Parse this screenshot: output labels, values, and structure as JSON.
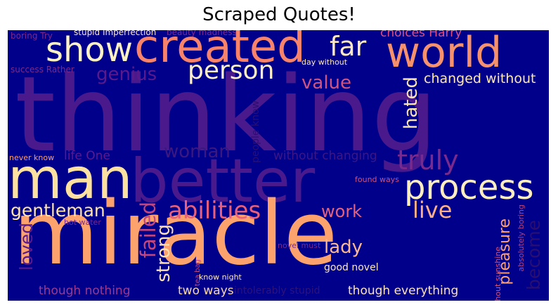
{
  "title": "Scraped Quotes!",
  "colors": {
    "background": "#00008b",
    "page": "#ffffff"
  },
  "words": [
    {
      "text": "thinking",
      "color": "#4a1a8c"
    },
    {
      "text": "miracle",
      "color": "#fca26c"
    },
    {
      "text": "better",
      "color": "#4a1a8c"
    },
    {
      "text": "man",
      "color": "#fde1a0"
    },
    {
      "text": "created",
      "color": "#f7836b"
    },
    {
      "text": "world",
      "color": "#f5916c"
    },
    {
      "text": "show",
      "color": "#fdf2c4"
    },
    {
      "text": "process",
      "color": "#fdeec0"
    },
    {
      "text": "person",
      "color": "#fdf0c8"
    },
    {
      "text": "far",
      "color": "#fce9c0"
    },
    {
      "text": "truly",
      "color": "#7a2a8c"
    },
    {
      "text": "abilities",
      "color": "#e8607a"
    },
    {
      "text": "live",
      "color": "#fdb088"
    },
    {
      "text": "gentleman",
      "color": "#fde3ac"
    },
    {
      "text": "value",
      "color": "#d0557f"
    },
    {
      "text": "genius",
      "color": "#5a1a8c"
    },
    {
      "text": "hated",
      "color": "#fbe6b0"
    },
    {
      "text": "changed without",
      "color": "#fde6b8"
    },
    {
      "text": "woman",
      "color": "#3a1880"
    },
    {
      "text": "work",
      "color": "#e6637c"
    },
    {
      "text": "lady",
      "color": "#fbb890"
    },
    {
      "text": "failed",
      "color": "#c2477f"
    },
    {
      "text": "strong",
      "color": "#fde0b0"
    },
    {
      "text": "loved",
      "color": "#5a1a8c"
    },
    {
      "text": "pleasure",
      "color": "#fca078"
    },
    {
      "text": "become",
      "color": "#2a0f70"
    },
    {
      "text": "choices Harry",
      "color": "#e0507e"
    },
    {
      "text": "life One",
      "color": "#5d1a8c"
    },
    {
      "text": "without changing",
      "color": "#3d1686"
    },
    {
      "text": "two ways",
      "color": "#fcd8b0"
    },
    {
      "text": "though nothing",
      "color": "#9a3a90"
    },
    {
      "text": "though everything",
      "color": "#fde2c0"
    },
    {
      "text": "good novel",
      "color": "#fde6c8"
    },
    {
      "text": "intolerably stupid",
      "color": "#2e1278"
    },
    {
      "text": "stupid Imperfection",
      "color": "#fde8c8"
    },
    {
      "text": "beauty madness",
      "color": "#7a2a8c"
    },
    {
      "text": "boring Try",
      "color": "#7a2a8c"
    },
    {
      "text": "success Rather",
      "color": "#7a2a8c"
    },
    {
      "text": "day without",
      "color": "#fde8c8"
    },
    {
      "text": "never know",
      "color": "#fca078"
    },
    {
      "text": "found ways",
      "color": "#d05080"
    },
    {
      "text": "hot water",
      "color": "#7a2a8c"
    },
    {
      "text": "novel must",
      "color": "#7a2a8c"
    },
    {
      "text": "tea bag",
      "color": "#c04880"
    },
    {
      "text": "know night",
      "color": "#fde8c8"
    },
    {
      "text": "without sunshine",
      "color": "#d05080"
    },
    {
      "text": "absolutely boring",
      "color": "#b04080"
    },
    {
      "text": "people know",
      "color": "#2a0f70"
    }
  ]
}
